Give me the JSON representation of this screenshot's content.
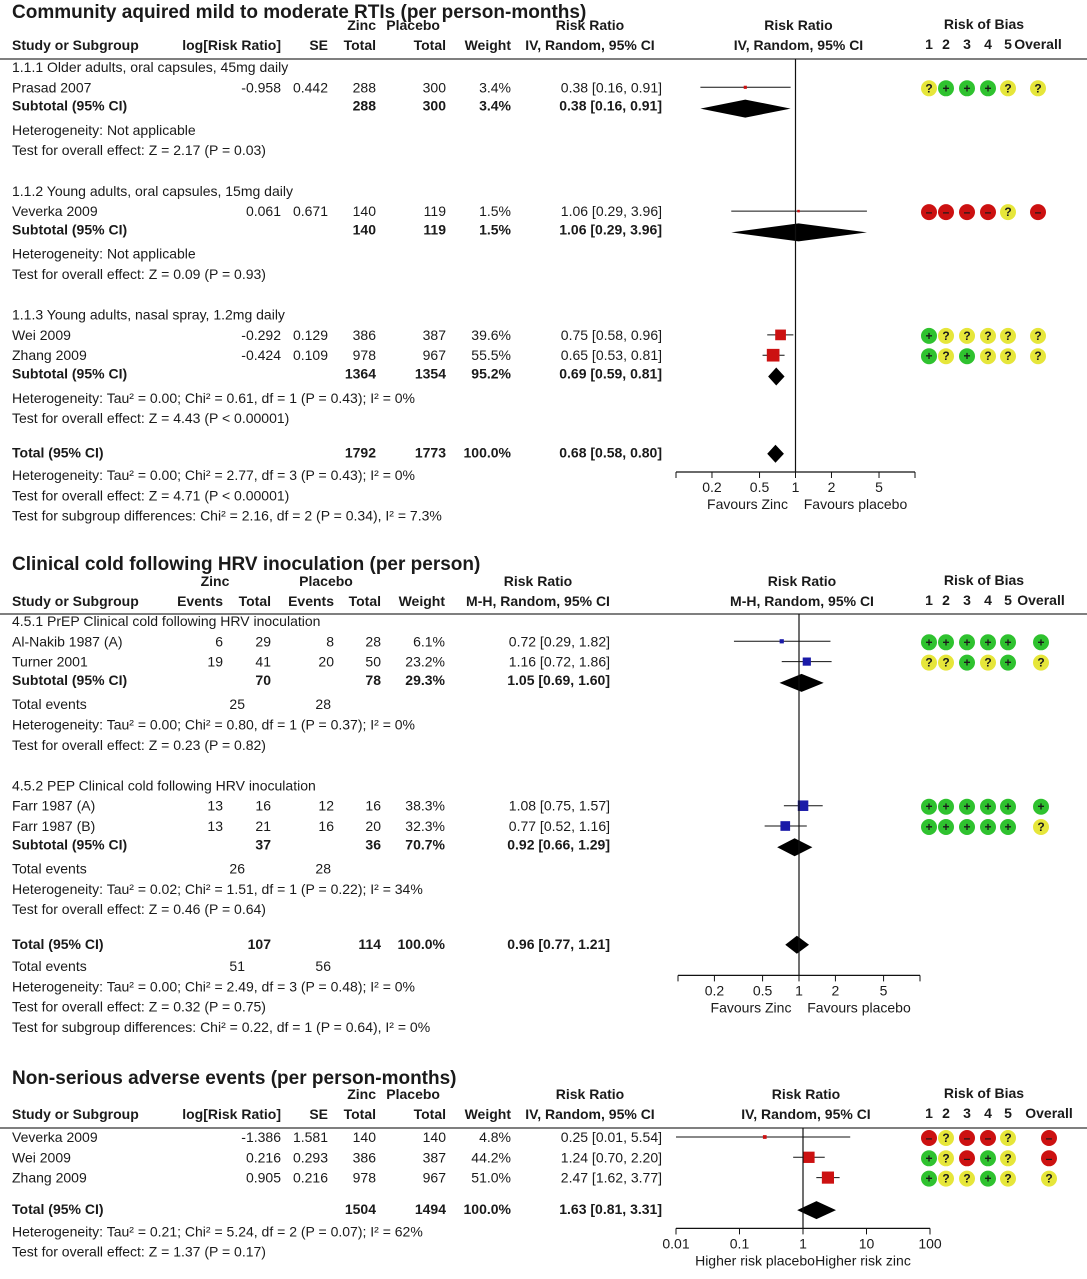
{
  "colors": {
    "low_risk": "#2fc22f",
    "unclear_risk": "#e6e63a",
    "high_risk": "#cc1111",
    "marker_red": "#cc1111",
    "marker_blue": "#1a1aa8",
    "diamond": "#000000"
  },
  "legend_symbols": {
    "low": "+",
    "high": "–",
    "unclear": "?"
  },
  "rob_columns": [
    "1",
    "2",
    "3",
    "4",
    "5",
    "Overall"
  ],
  "chart_data": [
    {
      "type": "forest",
      "title": "Community aquired mild to moderate RTIs (per person-months)",
      "measure": "log",
      "header": {
        "group_e": "Zinc",
        "group_c": "Placebo",
        "col_study": "Study or Subgroup",
        "col_log": "log[Risk Ratio]",
        "col_se": "SE",
        "col_te": "Total",
        "col_tc": "Total",
        "col_weight": "Weight",
        "rr_title": "Risk Ratio",
        "rr_method": "IV, Random, 95% CI",
        "plot_title": "Risk Ratio",
        "plot_method": "IV, Random, 95% CI",
        "rob_title": "Risk of Bias"
      },
      "axis": {
        "ticks": [
          "0.2",
          "0.5",
          "1",
          "2",
          "5"
        ],
        "range": [
          0.1,
          10
        ],
        "favours_left": "Favours Zinc",
        "favours_right": "Favours placebo"
      },
      "subgroups": [
        {
          "label": "1.1.1 Older adults, oral capsules, 45mg daily",
          "studies": [
            {
              "name": "Prasad 2007",
              "log": "-0.958",
              "se": "0.442",
              "te": "288",
              "tc": "300",
              "weight": "3.4%",
              "ci": "0.38 [0.16, 0.91]",
              "est": 0.38,
              "lo": 0.16,
              "hi": 0.91,
              "w": 3.4,
              "rob": [
                "unclear",
                "low",
                "low",
                "low",
                "unclear",
                "unclear"
              ]
            }
          ],
          "subtotal": {
            "label": "Subtotal (95% CI)",
            "te": "288",
            "tc": "300",
            "weight": "3.4%",
            "ci": "0.38 [0.16, 0.91]",
            "est": 0.38,
            "lo": 0.16,
            "hi": 0.91
          },
          "stats": [
            "Heterogeneity: Not applicable",
            "Test for overall effect: Z = 2.17 (P = 0.03)"
          ]
        },
        {
          "label": "1.1.2 Young adults, oral capsules, 15mg daily",
          "studies": [
            {
              "name": "Veverka 2009",
              "log": "0.061",
              "se": "0.671",
              "te": "140",
              "tc": "119",
              "weight": "1.5%",
              "ci": "1.06 [0.29, 3.96]",
              "est": 1.06,
              "lo": 0.29,
              "hi": 3.96,
              "w": 1.5,
              "rob": [
                "high",
                "high",
                "high",
                "high",
                "unclear",
                "high"
              ]
            }
          ],
          "subtotal": {
            "label": "Subtotal (95% CI)",
            "te": "140",
            "tc": "119",
            "weight": "1.5%",
            "ci": "1.06 [0.29, 3.96]",
            "est": 1.06,
            "lo": 0.29,
            "hi": 3.96
          },
          "stats": [
            "Heterogeneity: Not applicable",
            "Test for overall effect: Z = 0.09 (P = 0.93)"
          ]
        },
        {
          "label": "1.1.3 Young adults, nasal spray, 1.2mg daily",
          "studies": [
            {
              "name": "Wei 2009",
              "log": "-0.292",
              "se": "0.129",
              "te": "386",
              "tc": "387",
              "weight": "39.6%",
              "ci": "0.75 [0.58, 0.96]",
              "est": 0.75,
              "lo": 0.58,
              "hi": 0.96,
              "w": 39.6,
              "rob": [
                "low",
                "unclear",
                "unclear",
                "unclear",
                "unclear",
                "unclear"
              ]
            },
            {
              "name": "Zhang 2009",
              "log": "-0.424",
              "se": "0.109",
              "te": "978",
              "tc": "967",
              "weight": "55.5%",
              "ci": "0.65 [0.53, 0.81]",
              "est": 0.65,
              "lo": 0.53,
              "hi": 0.81,
              "w": 55.5,
              "rob": [
                "low",
                "unclear",
                "low",
                "unclear",
                "unclear",
                "unclear"
              ]
            }
          ],
          "subtotal": {
            "label": "Subtotal (95% CI)",
            "te": "1364",
            "tc": "1354",
            "weight": "95.2%",
            "ci": "0.69 [0.59, 0.81]",
            "est": 0.69,
            "lo": 0.59,
            "hi": 0.81
          },
          "stats": [
            "Heterogeneity: Tau² = 0.00; Chi² = 0.61, df = 1 (P = 0.43); I² = 0%",
            "Test for overall effect: Z = 4.43 (P < 0.00001)"
          ]
        }
      ],
      "total": {
        "label": "Total (95% CI)",
        "te": "1792",
        "tc": "1773",
        "weight": "100.0%",
        "ci": "0.68 [0.58, 0.80]",
        "est": 0.68,
        "lo": 0.58,
        "hi": 0.8
      },
      "total_stats": [
        "Heterogeneity: Tau² = 0.00; Chi² = 2.77, df = 3 (P = 0.43); I² = 0%",
        "Test for overall effect: Z = 4.71 (P < 0.00001)",
        "Test for subgroup differences: Chi² = 2.16, df = 2 (P = 0.34), I² = 7.3%"
      ]
    },
    {
      "type": "forest",
      "title": "Clinical cold following HRV inoculation (per person)",
      "measure": "count",
      "header": {
        "group_e": "Zinc",
        "group_c": "Placebo",
        "col_study": "Study or Subgroup",
        "col_ee": "Events",
        "col_te": "Total",
        "col_ec": "Events",
        "col_tc": "Total",
        "col_weight": "Weight",
        "rr_title": "Risk Ratio",
        "rr_method": "M-H, Random, 95% CI",
        "plot_title": "Risk Ratio",
        "plot_method": "M-H, Random, 95% CI",
        "rob_title": "Risk of Bias"
      },
      "axis": {
        "ticks": [
          "0.2",
          "0.5",
          "1",
          "2",
          "5"
        ],
        "range": [
          0.1,
          10
        ],
        "favours_left": "Favours Zinc",
        "favours_right": "Favours placebo"
      },
      "subgroups": [
        {
          "label": "4.5.1 PrEP Clinical cold following HRV inoculation",
          "studies": [
            {
              "name": "Al-Nakib 1987 (A)",
              "ee": "6",
              "te": "29",
              "ec": "8",
              "tc": "28",
              "weight": "6.1%",
              "ci": "0.72 [0.29, 1.82]",
              "est": 0.72,
              "lo": 0.29,
              "hi": 1.82,
              "w": 6.1,
              "rob": [
                "low",
                "low",
                "low",
                "low",
                "low",
                "low"
              ]
            },
            {
              "name": "Turner 2001",
              "ee": "19",
              "te": "41",
              "ec": "20",
              "tc": "50",
              "weight": "23.2%",
              "ci": "1.16 [0.72, 1.86]",
              "est": 1.16,
              "lo": 0.72,
              "hi": 1.86,
              "w": 23.2,
              "rob": [
                "unclear",
                "unclear",
                "low",
                "unclear",
                "low",
                "unclear"
              ]
            }
          ],
          "subtotal": {
            "label": "Subtotal (95% CI)",
            "te": "70",
            "tc": "78",
            "weight": "29.3%",
            "ci": "1.05 [0.69, 1.60]",
            "est": 1.05,
            "lo": 0.69,
            "hi": 1.6
          },
          "events": {
            "label": "Total events",
            "e": "25",
            "c": "28"
          },
          "stats": [
            "Heterogeneity: Tau² = 0.00; Chi² = 0.80, df = 1 (P = 0.37); I² = 0%",
            "Test for overall effect: Z = 0.23 (P = 0.82)"
          ]
        },
        {
          "label": "4.5.2 PEP Clinical cold following HRV inoculation",
          "studies": [
            {
              "name": "Farr 1987 (A)",
              "ee": "13",
              "te": "16",
              "ec": "12",
              "tc": "16",
              "weight": "38.3%",
              "ci": "1.08 [0.75, 1.57]",
              "est": 1.08,
              "lo": 0.75,
              "hi": 1.57,
              "w": 38.3,
              "rob": [
                "low",
                "low",
                "low",
                "low",
                "low",
                "low"
              ]
            },
            {
              "name": "Farr 1987 (B)",
              "ee": "13",
              "te": "21",
              "ec": "16",
              "tc": "20",
              "weight": "32.3%",
              "ci": "0.77 [0.52, 1.16]",
              "est": 0.77,
              "lo": 0.52,
              "hi": 1.16,
              "w": 32.3,
              "rob": [
                "low",
                "low",
                "low",
                "low",
                "low",
                "unclear"
              ]
            }
          ],
          "subtotal": {
            "label": "Subtotal (95% CI)",
            "te": "37",
            "tc": "36",
            "weight": "70.7%",
            "ci": "0.92 [0.66, 1.29]",
            "est": 0.92,
            "lo": 0.66,
            "hi": 1.29
          },
          "events": {
            "label": "Total events",
            "e": "26",
            "c": "28"
          },
          "stats": [
            "Heterogeneity: Tau² = 0.02; Chi² = 1.51, df = 1 (P = 0.22); I² = 34%",
            "Test for overall effect: Z = 0.46 (P = 0.64)"
          ]
        }
      ],
      "total": {
        "label": "Total (95% CI)",
        "te": "107",
        "tc": "114",
        "weight": "100.0%",
        "ci": "0.96 [0.77, 1.21]",
        "est": 0.96,
        "lo": 0.77,
        "hi": 1.21
      },
      "total_events": {
        "label": "Total events",
        "e": "51",
        "c": "56"
      },
      "total_stats": [
        "Heterogeneity: Tau² = 0.00; Chi² = 2.49, df = 3 (P = 0.48); I² = 0%",
        "Test for overall effect: Z = 0.32 (P = 0.75)",
        "Test for subgroup differences: Chi² = 0.22, df = 1 (P = 0.64), I² = 0%"
      ]
    },
    {
      "type": "forest",
      "title": "Non-serious adverse events (per person-months)",
      "measure": "log",
      "header": {
        "group_e": "Zinc",
        "group_c": "Placebo",
        "col_study": "Study or Subgroup",
        "col_log": "log[Risk Ratio]",
        "col_se": "SE",
        "col_te": "Total",
        "col_tc": "Total",
        "col_weight": "Weight",
        "rr_title": "Risk Ratio",
        "rr_method": "IV, Random, 95% CI",
        "plot_title": "Risk Ratio",
        "plot_method": "IV, Random, 95% CI",
        "rob_title": "Risk of Bias"
      },
      "axis": {
        "ticks": [
          "0.01",
          "0.1",
          "1",
          "10",
          "100"
        ],
        "range": [
          0.01,
          100
        ],
        "favours_left": "Higher risk placebo",
        "favours_right": "Higher risk zinc"
      },
      "subgroups": [
        {
          "label": "",
          "studies": [
            {
              "name": "Veverka 2009",
              "log": "-1.386",
              "se": "1.581",
              "te": "140",
              "tc": "140",
              "weight": "4.8%",
              "ci": "0.25 [0.01, 5.54]",
              "est": 0.25,
              "lo": 0.01,
              "hi": 5.54,
              "w": 4.8,
              "rob": [
                "high",
                "unclear",
                "high",
                "high",
                "unclear",
                "high"
              ]
            },
            {
              "name": "Wei 2009",
              "log": "0.216",
              "se": "0.293",
              "te": "386",
              "tc": "387",
              "weight": "44.2%",
              "ci": "1.24 [0.70, 2.20]",
              "est": 1.24,
              "lo": 0.7,
              "hi": 2.2,
              "w": 44.2,
              "rob": [
                "low",
                "unclear",
                "high",
                "low",
                "unclear",
                "high"
              ]
            },
            {
              "name": "Zhang 2009",
              "log": "0.905",
              "se": "0.216",
              "te": "978",
              "tc": "967",
              "weight": "51.0%",
              "ci": "2.47 [1.62, 3.77]",
              "est": 2.47,
              "lo": 1.62,
              "hi": 3.77,
              "w": 51.0,
              "rob": [
                "low",
                "unclear",
                "unclear",
                "low",
                "unclear",
                "unclear"
              ]
            }
          ],
          "stats": []
        }
      ],
      "total": {
        "label": "Total (95% CI)",
        "te": "1504",
        "tc": "1494",
        "weight": "100.0%",
        "ci": "1.63 [0.81, 3.31]",
        "est": 1.63,
        "lo": 0.81,
        "hi": 3.31
      },
      "total_stats": [
        "Heterogeneity: Tau² = 0.21; Chi² = 5.24, df = 2 (P = 0.07); I² = 62%",
        "Test for overall effect: Z = 1.37 (P = 0.17)"
      ]
    }
  ]
}
